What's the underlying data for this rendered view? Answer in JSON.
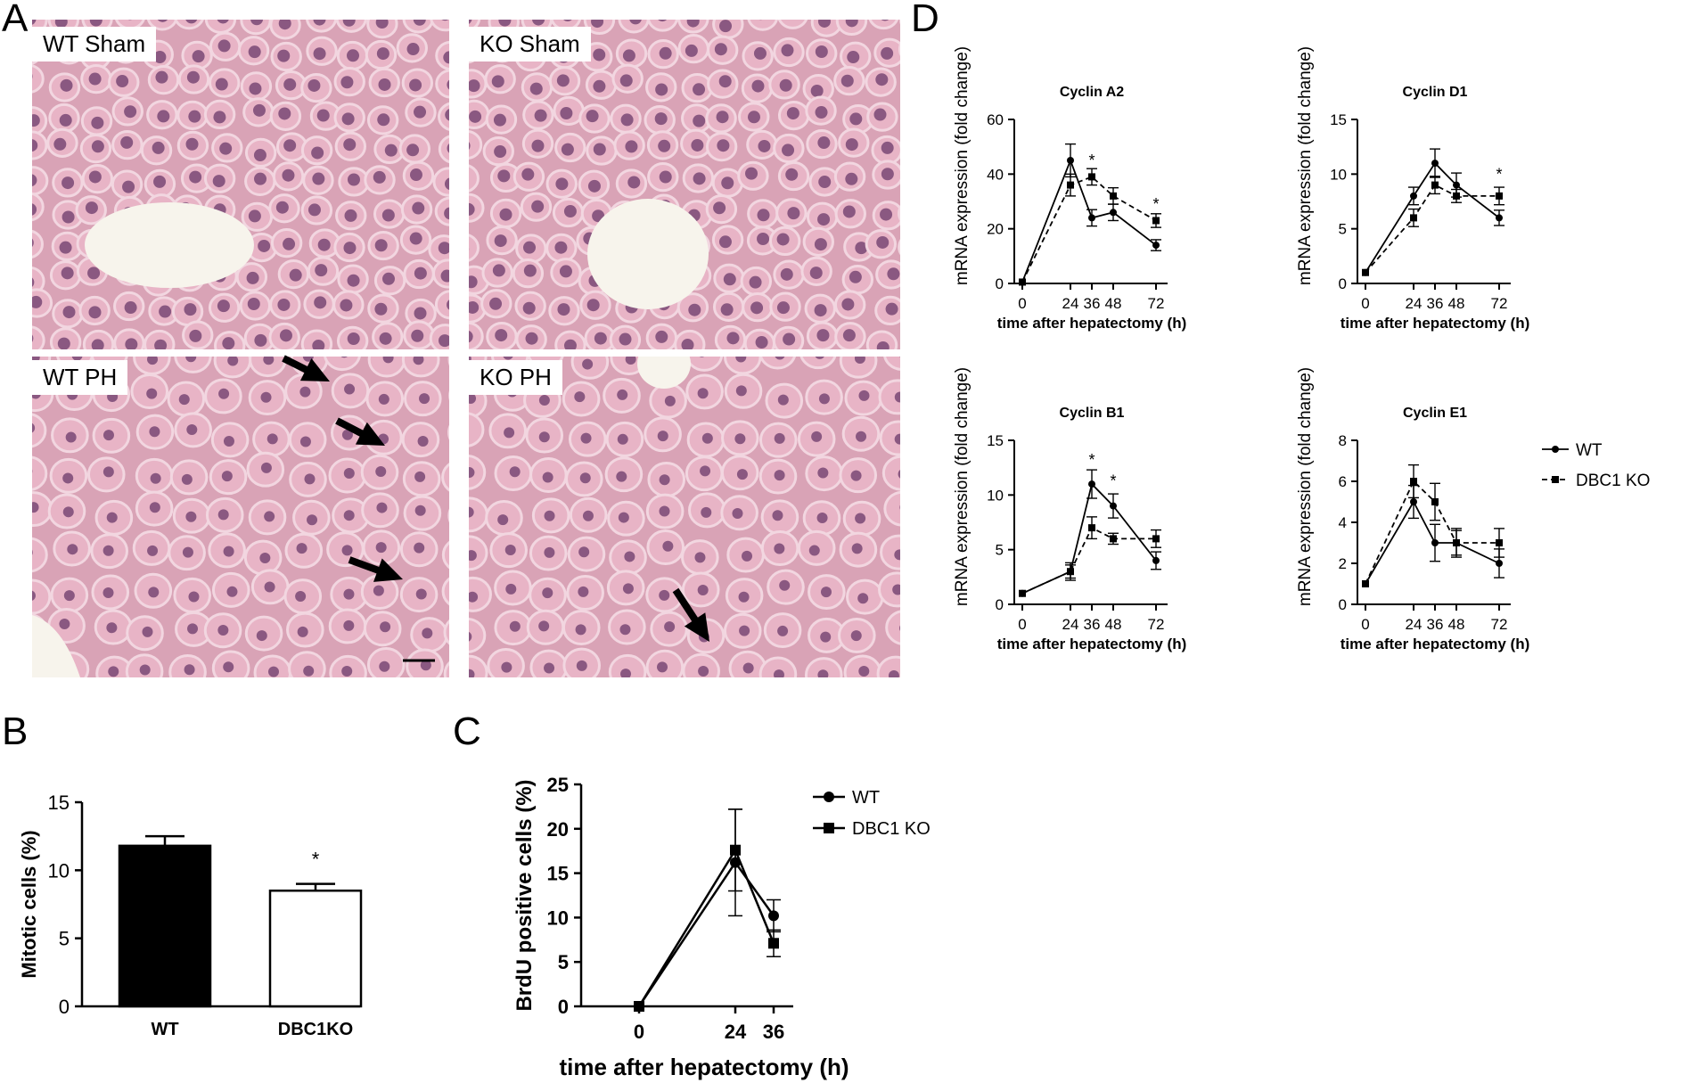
{
  "panels": {
    "a": "A",
    "b": "B",
    "c": "C",
    "d": "D"
  },
  "histology": {
    "labels": [
      "WT Sham",
      "KO Sham",
      "WT PH",
      "KO PH"
    ],
    "colors": {
      "tissue": "#d9a3b6",
      "cytoplasm": "#e8b4c6",
      "nucleus": "#6b3a6a",
      "lumen": "#f7f4ec",
      "arrow": "#000000"
    }
  },
  "chart_data": [
    {
      "id": "B",
      "type": "bar",
      "categories": [
        "WT",
        "DBC1KO"
      ],
      "values": [
        11.8,
        8.5
      ],
      "errors": [
        0.7,
        0.5
      ],
      "fills": [
        "#000000",
        "#ffffff"
      ],
      "annotations": [
        {
          "category": "DBC1KO",
          "text": "*"
        }
      ],
      "title": "",
      "xlabel": "",
      "ylabel": "Mitotic cells (%)",
      "ylim": [
        0,
        15
      ],
      "yticks": [
        "0",
        "5",
        "10",
        "15"
      ],
      "grid": false
    },
    {
      "id": "C",
      "type": "line",
      "x": [
        0,
        24,
        36
      ],
      "xticks": [
        "0",
        "24",
        "36"
      ],
      "series": [
        {
          "name": "WT",
          "marker": "circle",
          "values": [
            0,
            16.2,
            10.2
          ],
          "errors": [
            0,
            6.0,
            1.8
          ]
        },
        {
          "name": "DBC1 KO",
          "marker": "square",
          "values": [
            0,
            17.6,
            7.1
          ],
          "errors": [
            0,
            4.6,
            1.5
          ]
        }
      ],
      "title": "",
      "xlabel": "time after hepatectomy (h)",
      "ylabel": "BrdU positive cells (%)",
      "ylim": [
        0,
        25
      ],
      "yticks": [
        "0",
        "5",
        "10",
        "15",
        "20",
        "25"
      ],
      "legend": "right",
      "grid": false
    },
    {
      "id": "D1",
      "type": "line",
      "title": "Cyclin A2",
      "x": [
        0,
        24,
        36,
        48,
        72
      ],
      "xticks": [
        "0",
        "24",
        "36",
        "48",
        "72"
      ],
      "series": [
        {
          "name": "WT",
          "dash": false,
          "marker": "circle",
          "values": [
            0.5,
            45,
            24,
            26,
            14
          ],
          "errors": [
            0,
            6,
            3,
            3,
            2
          ]
        },
        {
          "name": "DBC1 KO",
          "dash": true,
          "marker": "square",
          "values": [
            0.5,
            36,
            39,
            32,
            23
          ],
          "errors": [
            0,
            4,
            3,
            3,
            2.5
          ]
        }
      ],
      "stars": [
        {
          "x": 36,
          "y": 45
        },
        {
          "x": 72,
          "y": 29
        }
      ],
      "xlabel": "time after hepatectomy (h)",
      "ylabel": "mRNA expression (fold change)",
      "ylim": [
        0,
        60
      ],
      "yticks": [
        "0",
        "20",
        "40",
        "60"
      ],
      "grid": false
    },
    {
      "id": "D2",
      "type": "line",
      "title": "Cyclin D1",
      "x": [
        0,
        24,
        36,
        48,
        72
      ],
      "xticks": [
        "0",
        "24",
        "36",
        "48",
        "72"
      ],
      "series": [
        {
          "name": "WT",
          "dash": false,
          "marker": "circle",
          "values": [
            1,
            8,
            11,
            9,
            6
          ],
          "errors": [
            0,
            0.8,
            1.3,
            1.1,
            0.7
          ]
        },
        {
          "name": "DBC1 KO",
          "dash": true,
          "marker": "square",
          "values": [
            1,
            6,
            9,
            8,
            8
          ],
          "errors": [
            0,
            0.8,
            0.8,
            0.6,
            0.8
          ]
        }
      ],
      "stars": [
        {
          "x": 72,
          "y": 10
        }
      ],
      "xlabel": "time after hepatectomy (h)",
      "ylabel": "mRNA expression (fold change)",
      "ylim": [
        0,
        15
      ],
      "yticks": [
        "0",
        "5",
        "10",
        "15"
      ],
      "grid": false
    },
    {
      "id": "D3",
      "type": "line",
      "title": "Cyclin B1",
      "x": [
        0,
        24,
        36,
        48,
        72
      ],
      "xticks": [
        "0",
        "24",
        "36",
        "48",
        "72"
      ],
      "series": [
        {
          "name": "WT",
          "dash": false,
          "marker": "circle",
          "values": [
            1,
            3,
            11,
            9,
            4
          ],
          "errors": [
            0,
            0.8,
            1.3,
            1.1,
            0.8
          ]
        },
        {
          "name": "DBC1 KO",
          "dash": true,
          "marker": "square",
          "values": [
            1,
            3,
            7,
            6,
            6
          ],
          "errors": [
            0,
            0.6,
            1.0,
            0.5,
            0.8
          ]
        }
      ],
      "stars": [
        {
          "x": 36,
          "y": 13.2
        },
        {
          "x": 48,
          "y": 11.3
        }
      ],
      "xlabel": "time after hepatectomy (h)",
      "ylabel": "mRNA expression (fold change)",
      "ylim": [
        0,
        15
      ],
      "yticks": [
        "0",
        "5",
        "10",
        "15"
      ],
      "grid": false
    },
    {
      "id": "D4",
      "type": "line",
      "title": "Cyclin E1",
      "x": [
        0,
        24,
        36,
        48,
        72
      ],
      "xticks": [
        "0",
        "24",
        "36",
        "48",
        "72"
      ],
      "series": [
        {
          "name": "WT",
          "dash": false,
          "marker": "circle",
          "values": [
            1,
            5,
            3,
            3,
            2
          ],
          "errors": [
            0,
            0.8,
            0.9,
            0.7,
            0.7
          ]
        },
        {
          "name": "DBC1 KO",
          "dash": true,
          "marker": "square",
          "values": [
            1,
            6,
            5,
            3,
            3
          ],
          "errors": [
            0,
            0.8,
            0.9,
            0.6,
            0.7
          ]
        }
      ],
      "stars": [],
      "xlabel": "time after hepatectomy (h)",
      "ylabel": "mRNA expression (fold change)",
      "ylim": [
        0,
        8
      ],
      "yticks": [
        "0",
        "2",
        "4",
        "6",
        "8"
      ],
      "legend": "right",
      "grid": false
    }
  ]
}
